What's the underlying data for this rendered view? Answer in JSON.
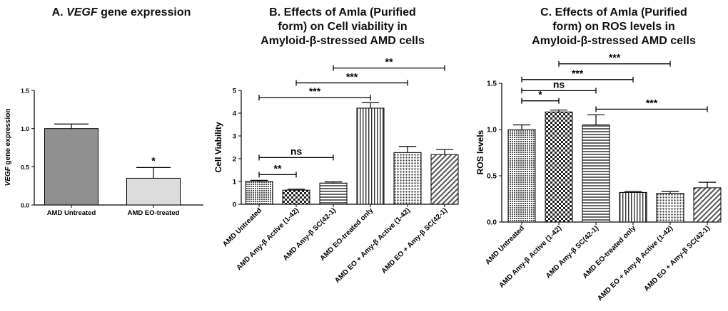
{
  "charts": [
    {
      "title_prefix": "A.",
      "title_gene": "VEGF",
      "title_suffix": "gene expression",
      "chart_data": {
        "type": "bar",
        "title": "A. VEGF gene expression",
        "ylabel_gene": "VEGF",
        "ylabel_rest": "gene expression",
        "ylim": [
          0,
          1.5
        ],
        "yticks": [
          "0.0",
          "0.5",
          "1.0",
          "1.5"
        ],
        "categories": [
          "AMD Untreated",
          "AMD EO-treated"
        ],
        "values": [
          1.0,
          0.35
        ],
        "errors": [
          0.06,
          0.14
        ],
        "bar_colors": [
          "#909090",
          "#dcdcdc"
        ],
        "bar_labels": [
          "",
          "*"
        ],
        "brackets": []
      }
    },
    {
      "title_lines": [
        "B. Effects of Amla (Purified",
        "form) on Cell viability in",
        "Amyloid-β-stressed AMD cells"
      ],
      "chart_data": {
        "type": "bar",
        "title": "B. Effects of Amla (Purified form) on Cell viability in Amyloid-β-stressed AMD cells",
        "ylabel": "Cell Viability",
        "ylim": [
          0,
          5
        ],
        "yticks": [
          "0",
          "1",
          "2",
          "3",
          "4",
          "5"
        ],
        "categories": [
          "AMD Untreated",
          "AMD Amy-β Active (1-42)",
          "AMD Amy-β SC(42-1)",
          "AMD EO-treated only",
          "AMD EO + Amy-β Active (1-42)",
          "AMD EO + Amy-β SC(42-1)"
        ],
        "values": [
          1.0,
          0.62,
          0.93,
          4.22,
          2.27,
          2.18
        ],
        "errors": [
          0.05,
          0.04,
          0.05,
          0.24,
          0.27,
          0.22
        ],
        "patterns": [
          "dense",
          "check",
          "hline",
          "vline",
          "dots",
          "diag"
        ],
        "brackets": [
          {
            "from": 0,
            "to": 1,
            "y": 1.3,
            "label": "**"
          },
          {
            "from": 0,
            "to": 2,
            "y": 2.05,
            "label": "ns"
          },
          {
            "from": 0,
            "to": 3,
            "y": 4.68,
            "label": "***"
          },
          {
            "from": 1,
            "to": 4,
            "y": 5.33,
            "label": "***"
          },
          {
            "from": 2,
            "to": 5,
            "y": 5.98,
            "label": "**"
          }
        ]
      }
    },
    {
      "title_lines": [
        "C. Effects of Amla (Purified",
        "form) on ROS levels in",
        "Amyloid-β-stressed AMD cells"
      ],
      "chart_data": {
        "type": "bar",
        "title": "C. Effects of Amla (Purified form) on ROS levels in Amyloid-β-stressed AMD cells",
        "ylabel": "ROS levels",
        "ylim": [
          0,
          1.5
        ],
        "yticks": [
          "0.0",
          "0.5",
          "1.0",
          "1.5"
        ],
        "categories": [
          "AMD Untreated",
          "AMD Amy-β Active (1-42)",
          "AMD Amy-β SC(42-1)",
          "AMD EO-treated only",
          "AMD EO + Amy-β Active (1-42)",
          "AMD EO + Amy-β SC(42-1)"
        ],
        "values": [
          1.0,
          1.19,
          1.05,
          0.32,
          0.31,
          0.37
        ],
        "errors": [
          0.05,
          0.02,
          0.11,
          0.01,
          0.02,
          0.06
        ],
        "patterns": [
          "dense",
          "check",
          "hline",
          "vline",
          "dots",
          "diag"
        ],
        "brackets": [
          {
            "from": 0,
            "to": 1,
            "y": 1.31,
            "label": "*"
          },
          {
            "from": 0,
            "to": 2,
            "y": 1.42,
            "label": "ns"
          },
          {
            "from": 0,
            "to": 3,
            "y": 1.54,
            "label": "***"
          },
          {
            "from": 1,
            "to": 4,
            "y": 1.71,
            "label": "***"
          },
          {
            "from": 2,
            "to": 5,
            "y": 1.22,
            "label": "***"
          }
        ]
      }
    }
  ]
}
